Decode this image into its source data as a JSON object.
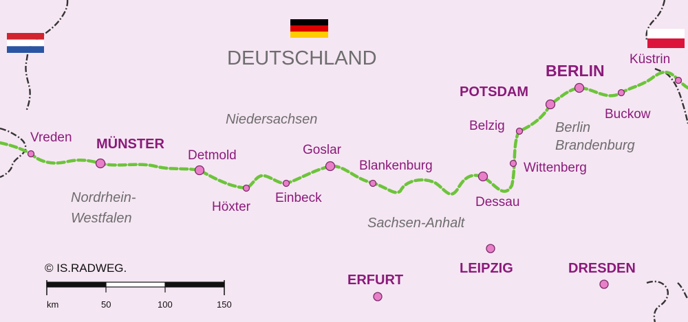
{
  "country": "DEUTSCHLAND",
  "regions": {
    "niedersachsen": "Niedersachsen",
    "nrw_line1": "Nordrhein-",
    "nrw_line2": "Westfalen",
    "sachsen_anhalt": "Sachsen-Anhalt",
    "berlin_line1": "Berlin",
    "berlin_line2": "Brandenburg"
  },
  "cities": {
    "vreden": "Vreden",
    "muenster": "MÜNSTER",
    "detmold": "Detmold",
    "hoexter": "Höxter",
    "einbeck": "Einbeck",
    "goslar": "Goslar",
    "blankenburg": "Blankenburg",
    "dessau": "Dessau",
    "wittenberg": "Wittenberg",
    "belzig": "Belzig",
    "potsdam": "POTSDAM",
    "berlin": "BERLIN",
    "buckow": "Buckow",
    "kuestrin": "Küstrin",
    "leipzig": "LEIPZIG",
    "erfurt": "ERFURT",
    "dresden": "DRESDEN"
  },
  "copyright": "© IS.RADWEG.",
  "scale": {
    "unit": "km",
    "ticks": [
      "50",
      "100",
      "150"
    ]
  },
  "colors": {
    "background": "#f5e6f3",
    "route": "#6cc43a",
    "city_marker": "#e97fc8",
    "city_text": "#8a1a7a",
    "region_text": "#6d6d6d",
    "border": "#333333"
  },
  "flags": {
    "left": "netherlands-flag",
    "center": "germany-flag",
    "right": "poland-flag"
  }
}
